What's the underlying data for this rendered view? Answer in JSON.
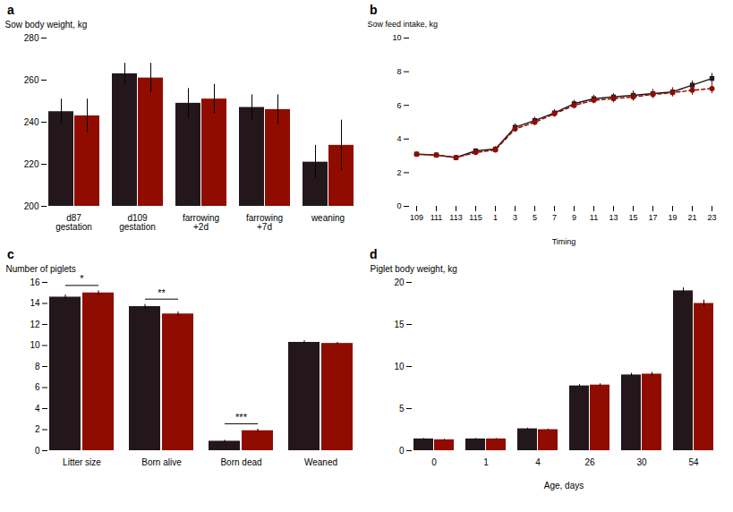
{
  "chart_data": [
    {
      "type": "bar",
      "title": "a",
      "ylabel": "Sow body weight, kg",
      "categories": [
        "d87\ngestation",
        "d109\ngestation",
        "farrowing\n+2d",
        "farrowing\n+7d",
        "weaning"
      ],
      "series": [
        {
          "values": [
            245,
            263,
            249,
            247,
            221
          ],
          "errors": [
            6,
            5,
            7,
            6,
            8
          ]
        },
        {
          "values": [
            243,
            261,
            251,
            246,
            229
          ],
          "errors": [
            8,
            7,
            7,
            7,
            12
          ]
        }
      ],
      "ylim": [
        200,
        280
      ],
      "yticks": [
        200,
        220,
        240,
        260,
        280
      ],
      "grid": false
    },
    {
      "type": "line",
      "title": "b",
      "ylabel": "Sow feed intake, kg",
      "xlabel": "Timing",
      "categories": [
        "109",
        "111",
        "113",
        "115",
        "1",
        "3",
        "5",
        "7",
        "9",
        "11",
        "13",
        "15",
        "17",
        "19",
        "21",
        "23"
      ],
      "series": [
        {
          "values": [
            3.1,
            3.05,
            2.9,
            3.3,
            3.4,
            4.7,
            5.1,
            5.55,
            6.1,
            6.4,
            6.5,
            6.6,
            6.7,
            6.8,
            7.2,
            7.6
          ],
          "errors": [
            0.1,
            0.1,
            0.1,
            0.1,
            0.15,
            0.2,
            0.2,
            0.2,
            0.2,
            0.2,
            0.2,
            0.25,
            0.25,
            0.25,
            0.25,
            0.3
          ],
          "marker": "square",
          "line_style": "solid"
        },
        {
          "values": [
            3.1,
            3.05,
            2.9,
            3.2,
            3.35,
            4.6,
            5.0,
            5.5,
            6.0,
            6.3,
            6.4,
            6.5,
            6.65,
            6.75,
            6.9,
            7.0
          ],
          "errors": [
            0.1,
            0.1,
            0.1,
            0.1,
            0.15,
            0.2,
            0.2,
            0.2,
            0.2,
            0.2,
            0.25,
            0.25,
            0.25,
            0.25,
            0.3,
            0.3
          ],
          "marker": "circle",
          "line_style": "dashed"
        }
      ],
      "ylim": [
        0,
        10
      ],
      "yticks": [
        0,
        2,
        4,
        6,
        8,
        10
      ],
      "grid": false
    },
    {
      "type": "bar",
      "title": "c",
      "ylabel": "Number of piglets",
      "categories": [
        "Litter size",
        "Born alive",
        "Born dead",
        "Weaned"
      ],
      "series": [
        {
          "values": [
            14.6,
            13.7,
            0.9,
            10.3
          ],
          "errors": [
            0.2,
            0.2,
            0.1,
            0.15
          ]
        },
        {
          "values": [
            15.0,
            13.0,
            1.9,
            10.2
          ],
          "errors": [
            0.2,
            0.2,
            0.15,
            0.1
          ]
        }
      ],
      "annotations": [
        {
          "category": "Litter size",
          "text": "*"
        },
        {
          "category": "Born alive",
          "text": "**"
        },
        {
          "category": "Born dead",
          "text": "***"
        }
      ],
      "ylim": [
        0,
        16
      ],
      "yticks": [
        0,
        2,
        4,
        6,
        8,
        10,
        12,
        14,
        16
      ],
      "grid": false
    },
    {
      "type": "bar",
      "title": "d",
      "ylabel": "Piglet body weight, kg",
      "xlabel": "Age, days",
      "categories": [
        "0",
        "1",
        "4",
        "26",
        "30",
        "54"
      ],
      "series": [
        {
          "values": [
            1.4,
            1.4,
            2.6,
            7.7,
            9.0,
            19.0
          ],
          "errors": [
            0.05,
            0.05,
            0.07,
            0.15,
            0.2,
            0.35
          ]
        },
        {
          "values": [
            1.3,
            1.4,
            2.5,
            7.8,
            9.1,
            17.5
          ],
          "errors": [
            0.05,
            0.05,
            0.07,
            0.15,
            0.2,
            0.4
          ]
        }
      ],
      "ylim": [
        0,
        20
      ],
      "yticks": [
        0,
        5,
        10,
        15,
        20
      ],
      "grid": false
    }
  ]
}
